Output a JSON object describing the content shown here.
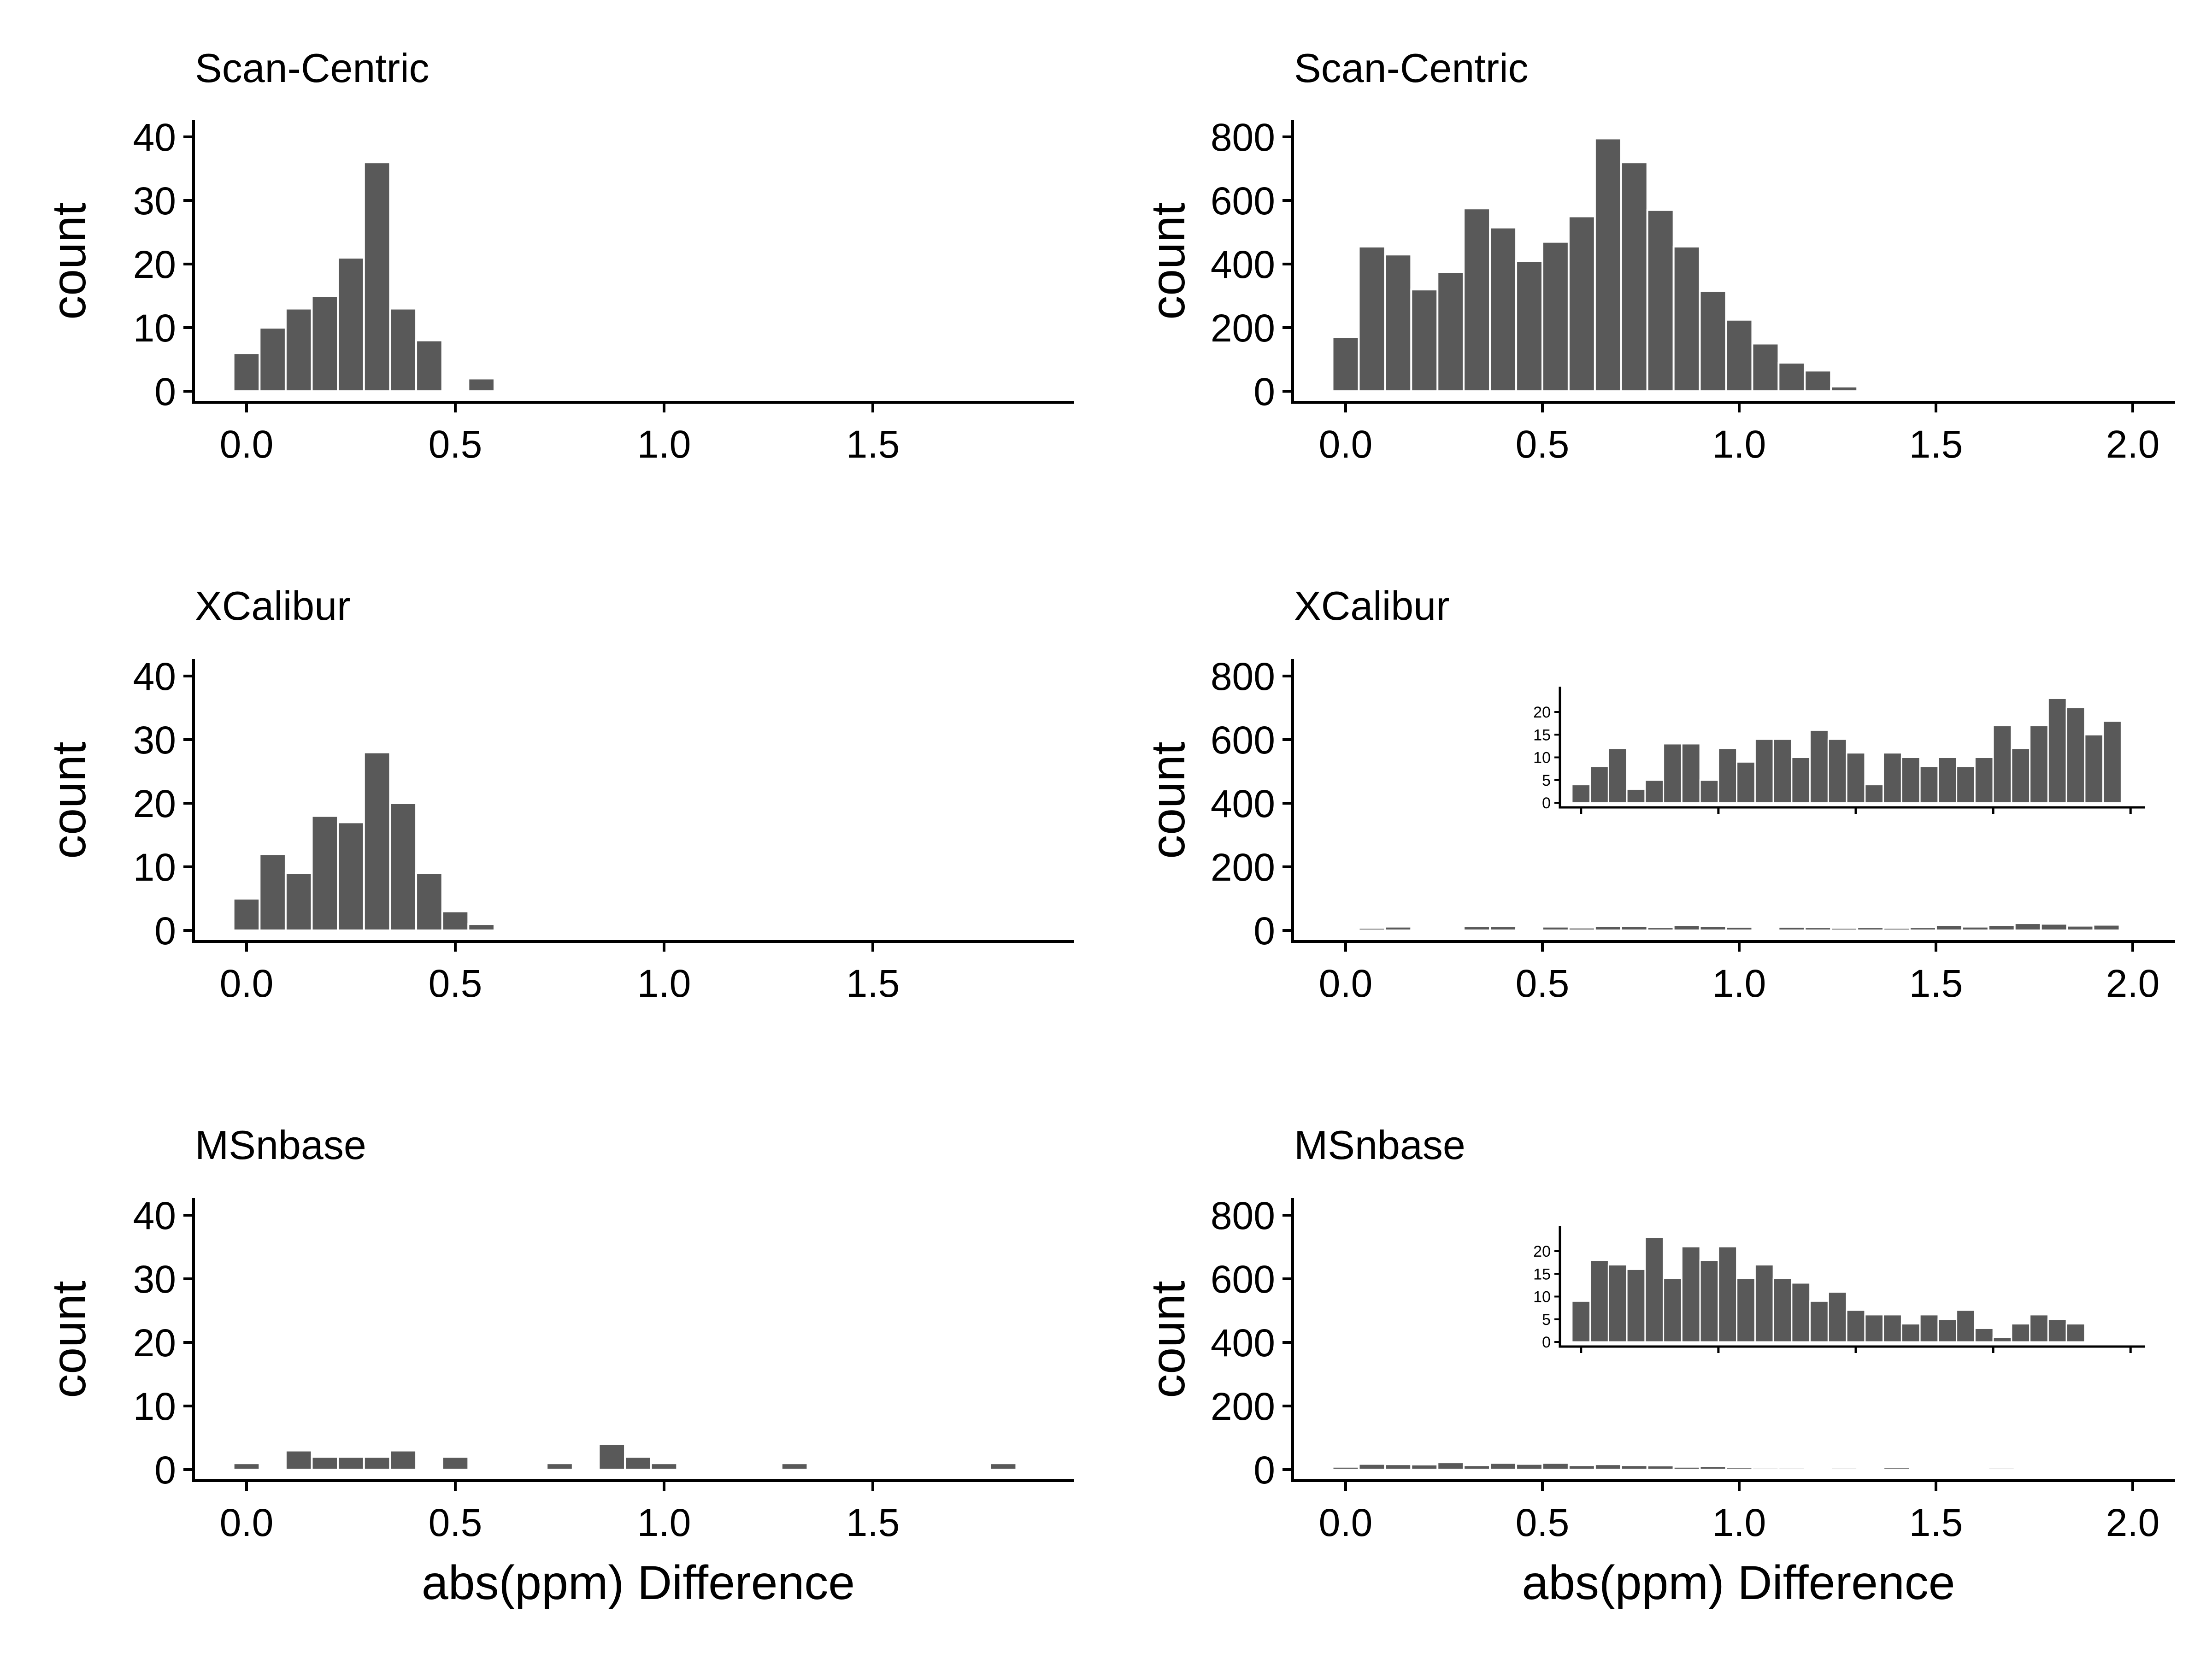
{
  "chart_data": [
    {
      "type": "bar",
      "title": "Scan-Centric",
      "ylabel": "count",
      "xlabel": "",
      "xlim": [
        -0.12,
        1.95
      ],
      "ylim": [
        0,
        42
      ],
      "xticks": [
        "0.0",
        "0.5",
        "1.0",
        "1.5"
      ],
      "yticks": [
        "0",
        "10",
        "20",
        "30",
        "40"
      ],
      "binwidth": 0.0625,
      "x": [
        0.0,
        0.0625,
        0.125,
        0.1875,
        0.25,
        0.3125,
        0.375,
        0.4375,
        0.5625
      ],
      "values": [
        6,
        10,
        13,
        15,
        21,
        36,
        13,
        8,
        2
      ]
    },
    {
      "type": "bar",
      "title": "Scan-Centric",
      "ylabel": "count",
      "xlabel": "",
      "xlim": [
        -0.12,
        2.1
      ],
      "ylim": [
        0,
        840
      ],
      "xticks": [
        "0.0",
        "0.5",
        "1.0",
        "1.5",
        "2.0"
      ],
      "yticks": [
        "0",
        "200",
        "400",
        "600",
        "800"
      ],
      "binwidth": 0.0667,
      "x": [
        0.0,
        0.0667,
        0.1333,
        0.2,
        0.2667,
        0.3333,
        0.4,
        0.4667,
        0.5333,
        0.6,
        0.6667,
        0.7333,
        0.8,
        0.8667,
        0.9333,
        1.0,
        1.0667,
        1.1333,
        1.2,
        1.2667,
        1.3333
      ],
      "values": [
        170,
        455,
        430,
        320,
        375,
        575,
        515,
        410,
        470,
        550,
        795,
        720,
        570,
        455,
        315,
        225,
        150,
        90,
        65,
        15,
        0
      ]
    },
    {
      "type": "bar",
      "title": "XCalibur",
      "ylabel": "count",
      "xlabel": "",
      "xlim": [
        -0.12,
        1.95
      ],
      "ylim": [
        0,
        42
      ],
      "xticks": [
        "0.0",
        "0.5",
        "1.0",
        "1.5"
      ],
      "yticks": [
        "0",
        "10",
        "20",
        "30",
        "40"
      ],
      "binwidth": 0.0625,
      "x": [
        0.0,
        0.0625,
        0.125,
        0.1875,
        0.25,
        0.3125,
        0.375,
        0.4375,
        0.5,
        0.5625
      ],
      "values": [
        5,
        12,
        9,
        18,
        17,
        28,
        20,
        9,
        3,
        1
      ]
    },
    {
      "type": "bar",
      "title": "XCalibur",
      "ylabel": "count",
      "xlabel": "",
      "xlim": [
        -0.12,
        2.1
      ],
      "ylim": [
        0,
        840
      ],
      "xticks": [
        "0.0",
        "0.5",
        "1.0",
        "1.5",
        "2.0"
      ],
      "yticks": [
        "0",
        "200",
        "400",
        "600",
        "800"
      ],
      "binwidth": 0.0667,
      "x": [
        0.0,
        0.0667,
        0.1333,
        0.2,
        0.2667,
        0.3333,
        0.4,
        0.4667,
        0.5333,
        0.6,
        0.6667,
        0.7333,
        0.8,
        0.8667,
        0.9333,
        1.0,
        1.0667,
        1.1333,
        1.2,
        1.2667,
        1.3333,
        1.4,
        1.4667,
        1.5333,
        1.6,
        1.6667,
        1.7333,
        1.8,
        1.8667,
        1.9333,
        2.0
      ],
      "values": [
        4,
        8,
        12,
        3,
        5,
        13,
        13,
        5,
        12,
        9,
        14,
        14,
        10,
        16,
        14,
        11,
        4,
        11,
        10,
        8,
        10,
        8,
        10,
        17,
        12,
        17,
        23,
        21,
        15,
        18,
        0
      ],
      "inset": {
        "ylim": [
          0,
          24
        ],
        "yticks": [
          "0",
          "5",
          "10",
          "15",
          "20"
        ],
        "xlim": [
          -0.03,
          2.1
        ],
        "xtick_values": [
          0,
          0.5,
          1.0,
          1.5,
          2.0
        ]
      }
    },
    {
      "type": "bar",
      "title": "MSnbase",
      "ylabel": "count",
      "xlabel": "abs(ppm) Difference",
      "xlim": [
        -0.12,
        1.95
      ],
      "ylim": [
        0,
        42
      ],
      "xticks": [
        "0.0",
        "0.5",
        "1.0",
        "1.5"
      ],
      "yticks": [
        "0",
        "10",
        "20",
        "30",
        "40"
      ],
      "binwidth": 0.0625,
      "x": [
        0.0,
        0.125,
        0.1875,
        0.25,
        0.3125,
        0.375,
        0.5,
        0.75,
        0.875,
        0.9375,
        1.0,
        1.3125,
        1.8125
      ],
      "values": [
        1,
        3,
        2,
        2,
        2,
        3,
        2,
        1,
        4,
        2,
        1,
        1,
        1
      ]
    },
    {
      "type": "bar",
      "title": "MSnbase",
      "ylabel": "count",
      "xlabel": "abs(ppm) Difference",
      "xlim": [
        -0.12,
        2.1
      ],
      "ylim": [
        0,
        840
      ],
      "xticks": [
        "0.0",
        "0.5",
        "1.0",
        "1.5",
        "2.0"
      ],
      "yticks": [
        "0",
        "200",
        "400",
        "600",
        "800"
      ],
      "binwidth": 0.0667,
      "x": [
        0.0,
        0.0667,
        0.1333,
        0.2,
        0.2667,
        0.3333,
        0.4,
        0.4667,
        0.5333,
        0.6,
        0.6667,
        0.7333,
        0.8,
        0.8667,
        0.9333,
        1.0,
        1.0667,
        1.1333,
        1.2,
        1.2667,
        1.3333,
        1.4,
        1.4667,
        1.5333,
        1.6,
        1.6667,
        1.7333,
        1.8,
        1.8667,
        1.9333,
        2.0
      ],
      "values": [
        9,
        18,
        17,
        16,
        23,
        14,
        21,
        18,
        21,
        14,
        17,
        14,
        13,
        9,
        11,
        7,
        6,
        6,
        4,
        6,
        5,
        7,
        3,
        1,
        4,
        6,
        5,
        4,
        0,
        0,
        0
      ],
      "inset": {
        "ylim": [
          0,
          24
        ],
        "yticks": [
          "0",
          "5",
          "10",
          "15",
          "20"
        ],
        "xlim": [
          -0.03,
          2.1
        ],
        "xtick_values": [
          0,
          0.5,
          1.0,
          1.5,
          2.0
        ]
      }
    }
  ]
}
